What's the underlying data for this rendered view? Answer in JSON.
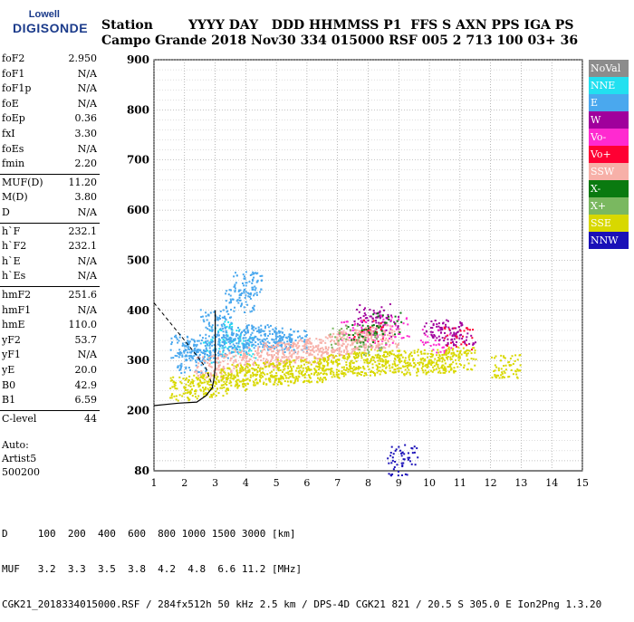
{
  "logo": {
    "line1": "Lowell",
    "line2": "DIGISONDE"
  },
  "header": {
    "keys": "Station        YYYY DAY   DDD HHMMSS P1  FFS S AXN PPS IGA PS",
    "vals": "Campo Grande 2018 Nov30 334 015000 RSF 005 2 713 100 03+ 36"
  },
  "params": [
    {
      "k": "foF2",
      "v": "2.950"
    },
    {
      "k": "foF1",
      "v": "N/A"
    },
    {
      "k": "foF1p",
      "v": "N/A"
    },
    {
      "k": "foE",
      "v": "N/A"
    },
    {
      "k": "foEp",
      "v": "0.36"
    },
    {
      "k": "fxI",
      "v": "3.30"
    },
    {
      "k": "foEs",
      "v": "N/A"
    },
    {
      "k": "fmin",
      "v": "2.20"
    },
    {
      "k": "MUF(D)",
      "v": "11.20"
    },
    {
      "k": "M(D)",
      "v": "3.80"
    },
    {
      "k": "D",
      "v": "N/A"
    },
    {
      "k": "h`F",
      "v": "232.1"
    },
    {
      "k": "h`F2",
      "v": "232.1"
    },
    {
      "k": "h`E",
      "v": "N/A"
    },
    {
      "k": "h`Es",
      "v": "N/A"
    },
    {
      "k": "hmF2",
      "v": "251.6"
    },
    {
      "k": "hmF1",
      "v": "N/A"
    },
    {
      "k": "hmE",
      "v": "110.0"
    },
    {
      "k": "yF2",
      "v": "53.7"
    },
    {
      "k": "yF1",
      "v": "N/A"
    },
    {
      "k": "yE",
      "v": "20.0"
    },
    {
      "k": "B0",
      "v": "42.9"
    },
    {
      "k": "B1",
      "v": "6.59"
    },
    {
      "k": "C-level",
      "v": "44"
    }
  ],
  "auto": {
    "line1": "Auto:",
    "line2": "Artist5",
    "line3": "500200"
  },
  "footer": {
    "d_line": "D     100  200  400  600  800 1000 1500 3000 [km]",
    "muf_line": "MUF   3.2  3.3  3.5  3.8  4.2  4.8  6.6 11.2 [MHz]",
    "info_line": "CGK21_2018334015000.RSF / 284fx512h 50 kHz 2.5 km / DPS-4D CGK21 821 / 20.5 S 305.0 E Ion2Png 1.3.20"
  },
  "legend": [
    {
      "label": "NoVal",
      "color": "#8c8c8c"
    },
    {
      "label": "NNE",
      "color": "#22e0f0"
    },
    {
      "label": "E",
      "color": "#4aa8ee"
    },
    {
      "label": "W",
      "color": "#a0009c"
    },
    {
      "label": "Vo-",
      "color": "#ff2ad0"
    },
    {
      "label": "Vo+",
      "color": "#ff0033"
    },
    {
      "label": "SSW",
      "color": "#f7b0a8"
    },
    {
      "label": "X-",
      "color": "#0a7a10"
    },
    {
      "label": "X+",
      "color": "#7ab860"
    },
    {
      "label": "SSE",
      "color": "#d8d800"
    },
    {
      "label": "NNW",
      "color": "#1a10b8"
    }
  ],
  "chart_data": {
    "type": "scatter",
    "title": "",
    "xlabel": "",
    "ylabel": "",
    "xlim": [
      1,
      15
    ],
    "ylim": [
      80,
      900
    ],
    "x_ticks": [
      1,
      2,
      3,
      4,
      5,
      6,
      7,
      8,
      9,
      10,
      11,
      12,
      13,
      14,
      15
    ],
    "y_ticks": [
      80,
      200,
      300,
      400,
      500,
      600,
      700,
      800,
      900
    ],
    "grid": true,
    "legend_position": "right",
    "series": [
      {
        "name": "NNE",
        "points": [
          [
            3.2,
            360
          ],
          [
            3.6,
            340
          ],
          [
            4.0,
            330
          ],
          [
            3.0,
            320
          ]
        ]
      },
      {
        "name": "E",
        "points": [
          [
            2.0,
            330
          ],
          [
            2.5,
            320
          ],
          [
            3.0,
            330
          ],
          [
            3.5,
            340
          ],
          [
            4.0,
            345
          ],
          [
            4.5,
            350
          ],
          [
            5.0,
            345
          ],
          [
            5.5,
            340
          ],
          [
            3.8,
            420
          ],
          [
            4.0,
            455
          ],
          [
            3.0,
            380
          ],
          [
            2.2,
            300
          ]
        ]
      },
      {
        "name": "W",
        "points": [
          [
            8.0,
            380
          ],
          [
            8.5,
            370
          ],
          [
            10.3,
            360
          ],
          [
            10.7,
            355
          ],
          [
            11.0,
            350
          ],
          [
            10.5,
            365
          ],
          [
            8.2,
            395
          ]
        ]
      },
      {
        "name": "Vo-",
        "points": [
          [
            7.5,
            360
          ],
          [
            8.3,
            350
          ],
          [
            10.2,
            340
          ],
          [
            8.9,
            370
          ]
        ]
      },
      {
        "name": "Vo+",
        "points": [
          [
            8.0,
            360
          ],
          [
            10.9,
            345
          ]
        ]
      },
      {
        "name": "SSW",
        "points": [
          [
            2.8,
            290
          ],
          [
            3.5,
            300
          ],
          [
            4.5,
            310
          ],
          [
            5.5,
            320
          ],
          [
            6.5,
            325
          ],
          [
            7.0,
            335
          ],
          [
            7.5,
            340
          ],
          [
            8.0,
            345
          ],
          [
            8.5,
            350
          ],
          [
            6.0,
            320
          ],
          [
            5.0,
            315
          ]
        ]
      },
      {
        "name": "X-",
        "points": [
          [
            7.8,
            360
          ],
          [
            8.6,
            375
          ]
        ]
      },
      {
        "name": "X+",
        "points": [
          [
            7.2,
            350
          ],
          [
            8.1,
            330
          ]
        ]
      },
      {
        "name": "SSE",
        "points": [
          [
            2.0,
            245
          ],
          [
            2.5,
            250
          ],
          [
            3.0,
            255
          ],
          [
            3.5,
            265
          ],
          [
            4.0,
            270
          ],
          [
            4.5,
            275
          ],
          [
            5.0,
            275
          ],
          [
            5.5,
            280
          ],
          [
            6.0,
            280
          ],
          [
            6.5,
            285
          ],
          [
            7.0,
            290
          ],
          [
            7.5,
            295
          ],
          [
            8.0,
            295
          ],
          [
            8.5,
            300
          ],
          [
            9.0,
            300
          ],
          [
            9.5,
            295
          ],
          [
            10.0,
            300
          ],
          [
            10.5,
            300
          ],
          [
            11.0,
            305
          ],
          [
            12.5,
            290
          ]
        ]
      },
      {
        "name": "NNW",
        "points": [
          [
            9.1,
            95
          ],
          [
            9.1,
            110
          ]
        ]
      }
    ],
    "profile_curve": [
      [
        1.0,
        210
      ],
      [
        1.8,
        215
      ],
      [
        2.4,
        217
      ],
      [
        2.7,
        230
      ],
      [
        2.9,
        245
      ],
      [
        2.95,
        260
      ],
      [
        3.0,
        285
      ],
      [
        3.0,
        320
      ],
      [
        3.0,
        350
      ],
      [
        3.0,
        380
      ],
      [
        3.0,
        400
      ]
    ],
    "dashed_curve": [
      [
        1.0,
        415
      ],
      [
        1.6,
        370
      ],
      [
        2.0,
        340
      ],
      [
        2.4,
        310
      ],
      [
        2.7,
        285
      ],
      [
        2.85,
        260
      ],
      [
        2.95,
        240
      ]
    ]
  }
}
